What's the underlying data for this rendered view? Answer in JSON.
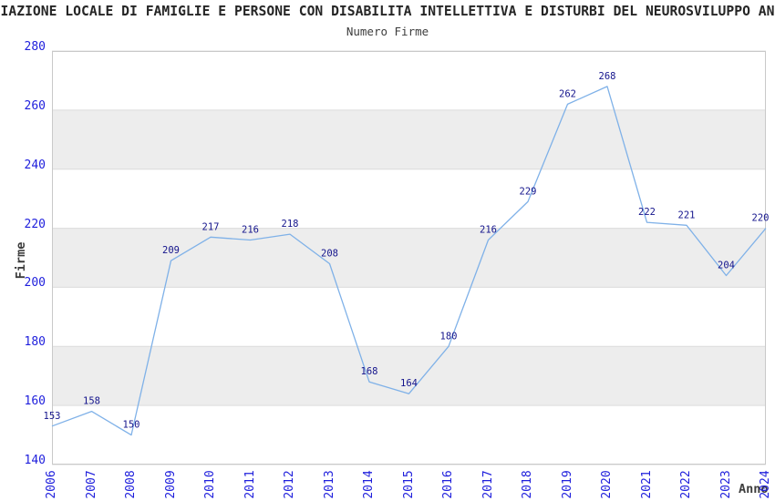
{
  "chart_data": {
    "type": "line",
    "title": "IAZIONE LOCALE DI FAMIGLIE E PERSONE CON DISABILITA INTELLETTIVA E DISTURBI DEL NEUROSVILUPPO AN",
    "subtitle": "Numero Firme",
    "xlabel": "Anno",
    "ylabel": "Firme",
    "categories": [
      "2006",
      "2007",
      "2008",
      "2009",
      "2010",
      "2011",
      "2012",
      "2013",
      "2014",
      "2015",
      "2016",
      "2017",
      "2018",
      "2019",
      "2020",
      "2021",
      "2022",
      "2023",
      "2024"
    ],
    "values": [
      153,
      158,
      150,
      209,
      217,
      216,
      218,
      208,
      168,
      164,
      180,
      216,
      229,
      262,
      268,
      222,
      221,
      204,
      220
    ],
    "ylim": [
      140,
      280
    ],
    "ytick_step": 20,
    "yticks": [
      140,
      160,
      180,
      200,
      220,
      240,
      260,
      280
    ],
    "grid": "horizontal",
    "banded_rows": true,
    "legend": "none",
    "point_labels_visible": true,
    "colors": {
      "line": "#7fb1e8",
      "point_label": "#14148c",
      "tick_label": "#1e1edc",
      "band_fill": "#ededed",
      "gridline": "#dcdcdc",
      "plot_border": "#c9c9c9",
      "title_text": "#262626",
      "axis_title_text": "#3d3d3d",
      "background": "#ffffff"
    }
  }
}
